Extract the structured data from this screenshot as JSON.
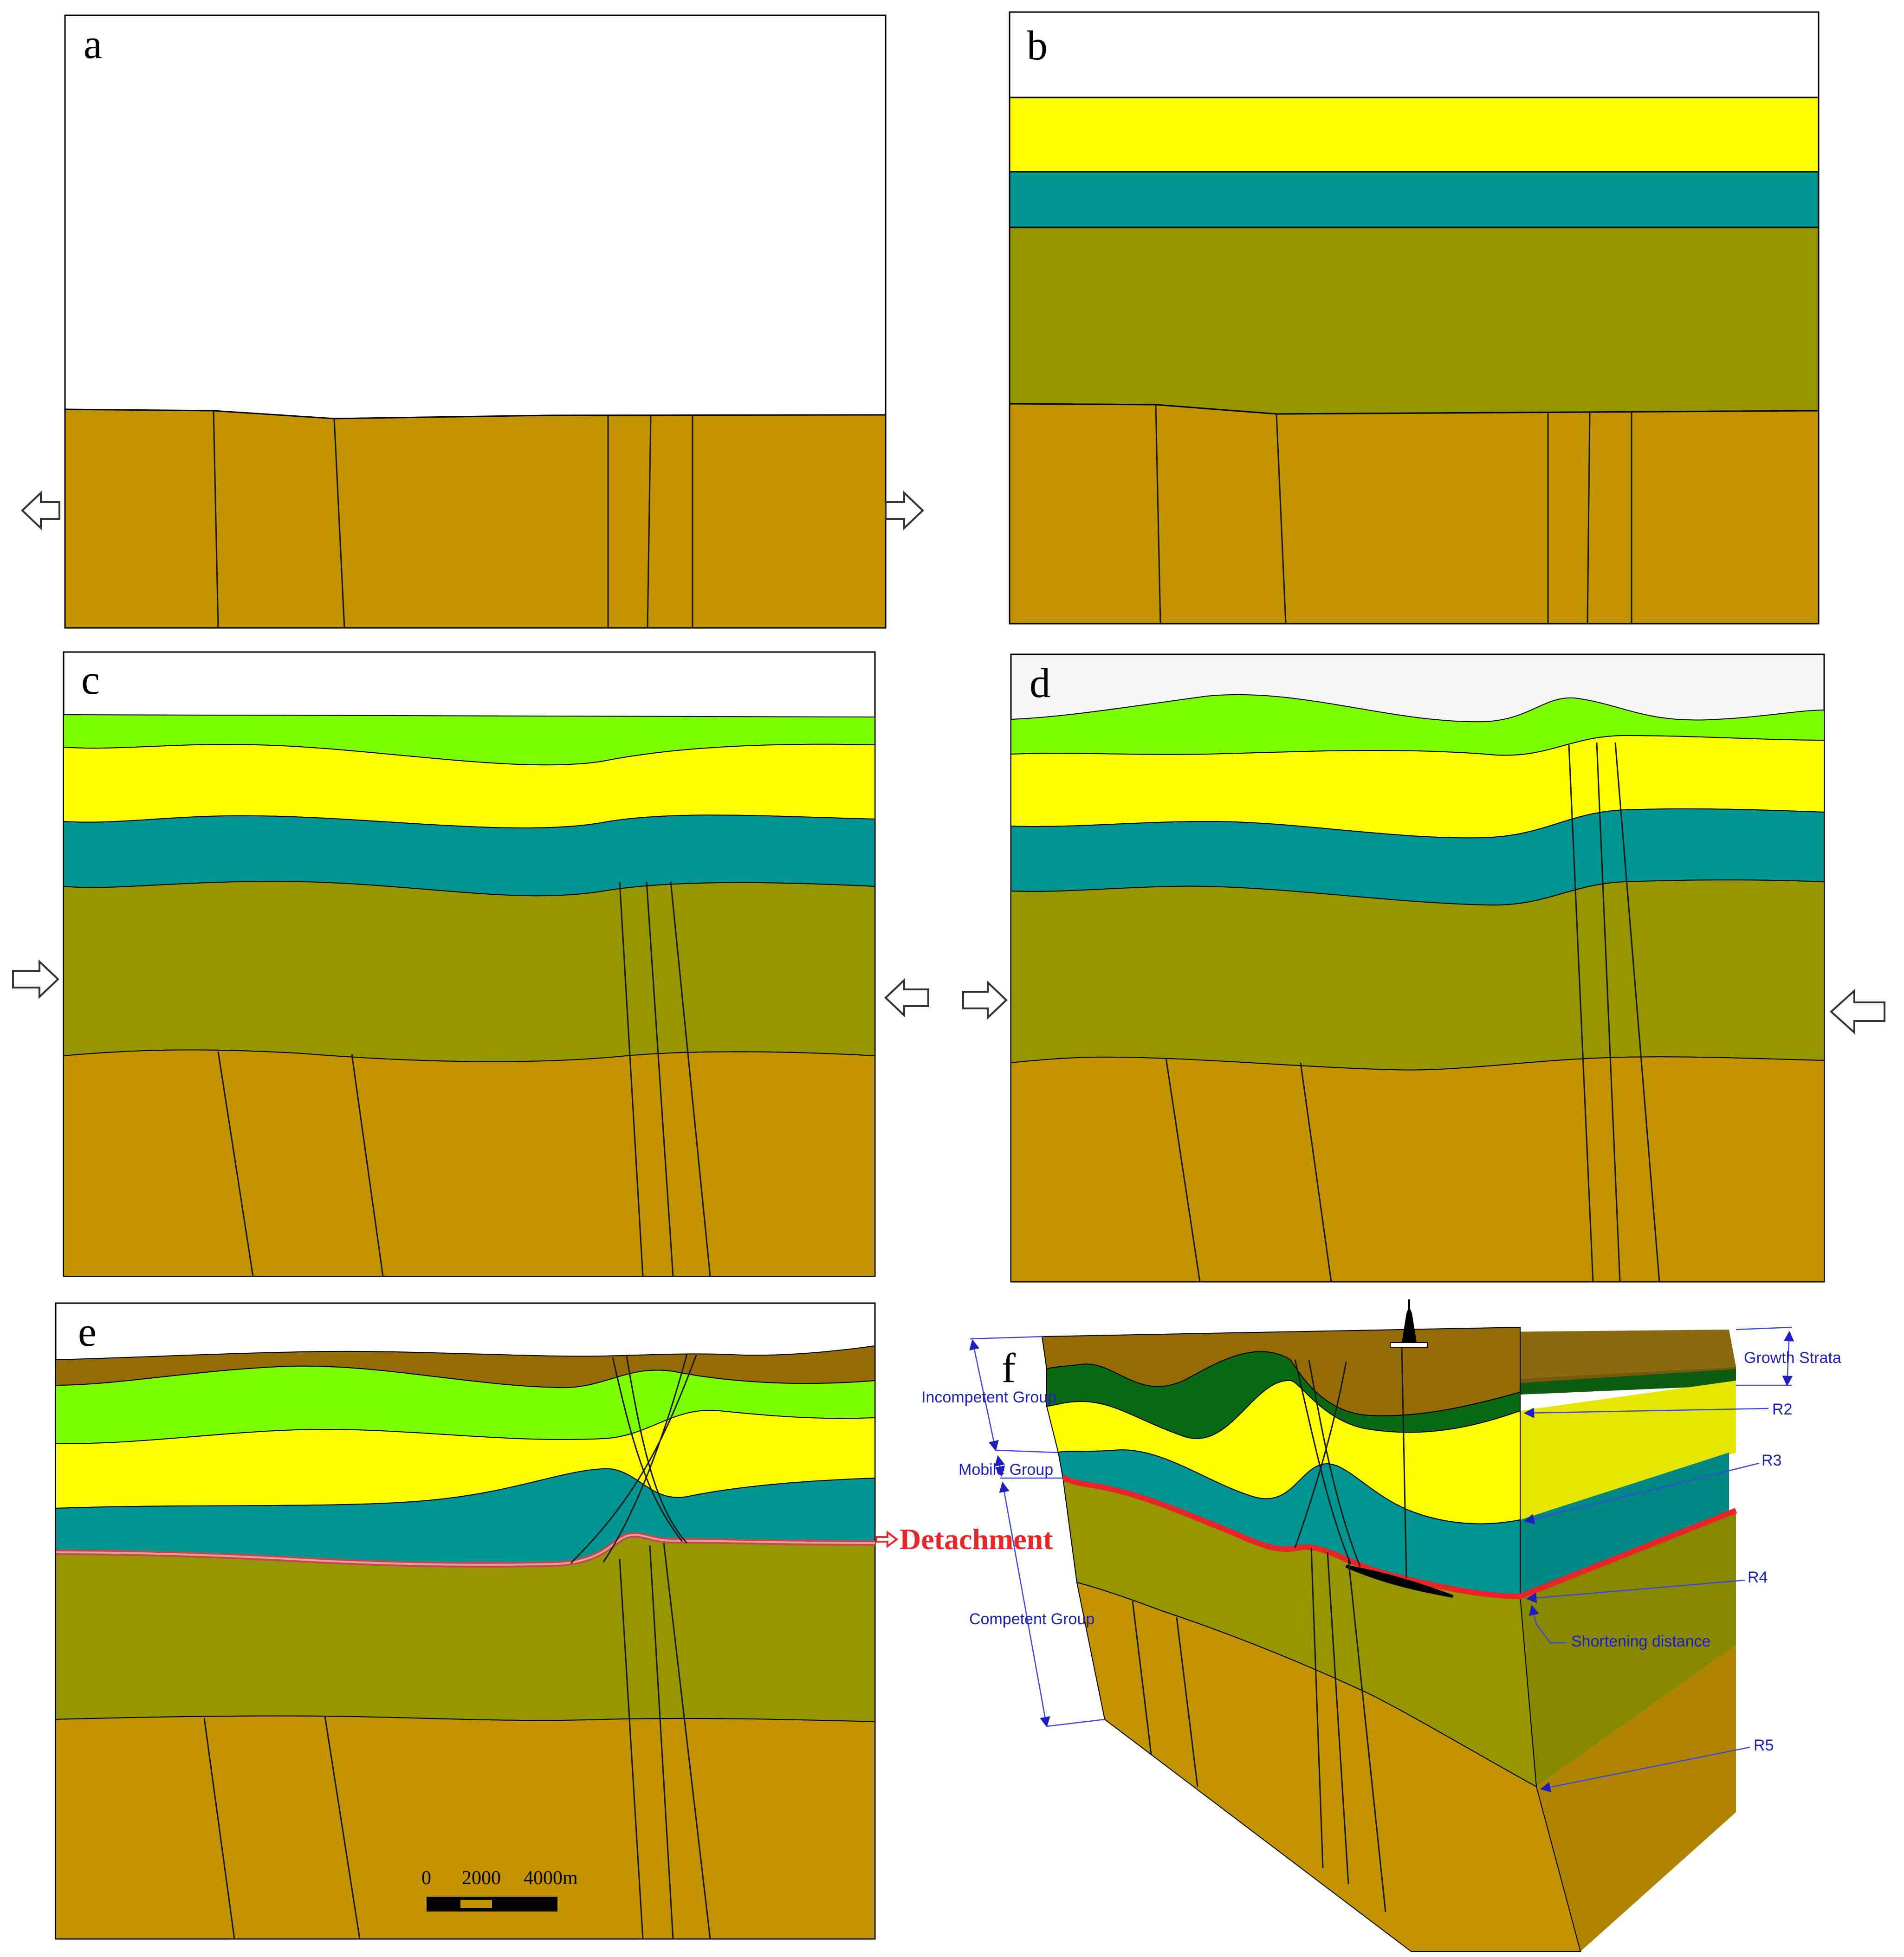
{
  "panels": {
    "a": {
      "label": "a"
    },
    "b": {
      "label": "b"
    },
    "c": {
      "label": "c"
    },
    "d": {
      "label": "d"
    },
    "e": {
      "label": "e"
    },
    "f": {
      "label": "f"
    }
  },
  "colors": {
    "basement": "#c49300",
    "competent": "#969600",
    "mobile": "#009590",
    "yellow": "#ffff00",
    "light_green": "#7cff00",
    "growth": "#946b05",
    "dark_green": "#0a6a14",
    "detachment": "#e8262a",
    "annotation": "#1f1fbf"
  },
  "detachment_label": "Detachment",
  "scale_bar": {
    "ticks": [
      "0",
      "2000",
      "4000m"
    ]
  },
  "annotations": {
    "incompetent_group": "Incompetent Group",
    "mobile_group": "Mobile Group",
    "competent_group": "Competent Group",
    "growth_strata": "Growth Strata",
    "r2": "R2",
    "r3": "R3",
    "r4": "R4",
    "r5": "R5",
    "shortening_distance": "Shortening distance"
  }
}
